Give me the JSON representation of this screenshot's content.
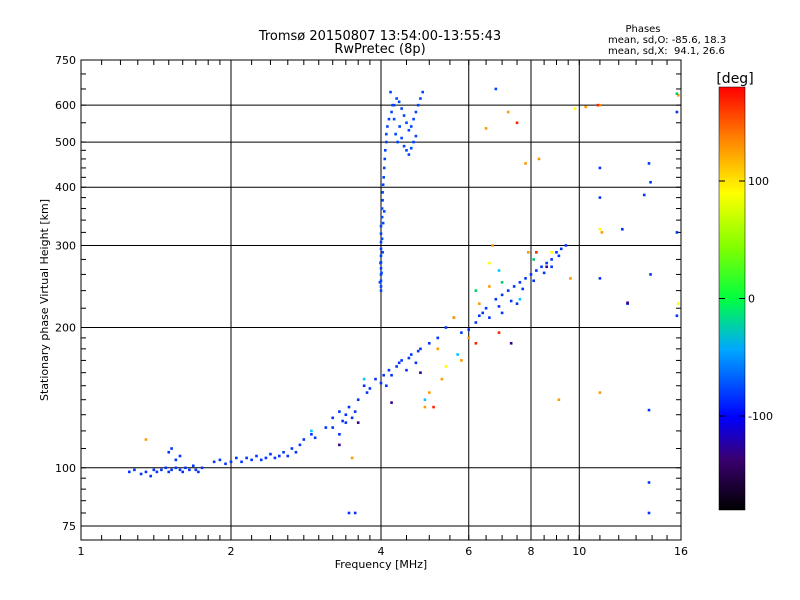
{
  "chart_data": {
    "type": "scatter",
    "title": "Tromsø 20150807 13:54:00-13:55:43",
    "subtitle": "RwPretec (8p)",
    "xlabel": "Frequency [MHz]",
    "ylabel": "Stationary phase Virtual Height [km]",
    "x_scale": "log2",
    "y_scale": "log",
    "xlim": [
      1,
      16
    ],
    "ylim": [
      70,
      750
    ],
    "x_ticks": [
      1,
      2,
      4,
      6,
      8,
      10,
      16
    ],
    "x_tick_labels": [
      "1",
      "2",
      "4",
      "6",
      "8",
      "10",
      "16"
    ],
    "y_ticks": [
      75,
      100,
      200,
      300,
      400,
      500,
      600,
      750
    ],
    "y_tick_labels": [
      "75",
      "100",
      "200",
      "300",
      "400",
      "500",
      "600",
      "750"
    ],
    "grid": true,
    "phase_info": {
      "title": "Phases",
      "line1": "mean, sd,O: -85.6, 18.3",
      "line2": "mean, sd,X:  94.1, 26.6"
    },
    "colorbar": {
      "label": "[deg]",
      "range": [
        -180,
        180
      ],
      "ticks": [
        100,
        0,
        -100
      ],
      "tick_labels": [
        "100",
        "0",
        "-100"
      ]
    },
    "series": [
      {
        "marker_color": "#0033ff",
        "points": [
          [
            1.25,
            98
          ],
          [
            1.28,
            99
          ],
          [
            1.32,
            97
          ],
          [
            1.35,
            98
          ],
          [
            1.38,
            96
          ],
          [
            1.4,
            99
          ],
          [
            1.42,
            98
          ],
          [
            1.45,
            99
          ],
          [
            1.48,
            100
          ],
          [
            1.5,
            98
          ],
          [
            1.52,
            99
          ],
          [
            1.55,
            100
          ],
          [
            1.58,
            99
          ],
          [
            1.6,
            98
          ],
          [
            1.62,
            100
          ],
          [
            1.65,
            99
          ],
          [
            1.68,
            101
          ],
          [
            1.7,
            99
          ],
          [
            1.72,
            98
          ],
          [
            1.75,
            100
          ],
          [
            1.5,
            108
          ],
          [
            1.52,
            110
          ],
          [
            1.58,
            106
          ],
          [
            1.55,
            104
          ],
          [
            1.85,
            103
          ],
          [
            1.9,
            104
          ],
          [
            1.95,
            102
          ],
          [
            2.0,
            103
          ],
          [
            2.05,
            105
          ],
          [
            2.1,
            103
          ],
          [
            2.15,
            105
          ],
          [
            2.2,
            104
          ],
          [
            2.25,
            106
          ],
          [
            2.3,
            104
          ],
          [
            2.35,
            105
          ],
          [
            2.4,
            107
          ],
          [
            2.45,
            105
          ],
          [
            2.5,
            106
          ],
          [
            2.55,
            108
          ],
          [
            2.6,
            106
          ],
          [
            2.65,
            110
          ],
          [
            2.7,
            108
          ],
          [
            2.75,
            112
          ],
          [
            2.8,
            115
          ],
          [
            2.9,
            118
          ],
          [
            2.95,
            116
          ],
          [
            3.1,
            122
          ],
          [
            3.2,
            128
          ],
          [
            3.3,
            132
          ],
          [
            3.35,
            126
          ],
          [
            3.4,
            130
          ],
          [
            3.45,
            135
          ],
          [
            3.5,
            128
          ],
          [
            3.6,
            140
          ],
          [
            3.7,
            150
          ],
          [
            3.8,
            148
          ],
          [
            3.9,
            155
          ],
          [
            4.0,
            152
          ],
          [
            4.1,
            150
          ],
          [
            4.2,
            158
          ],
          [
            4.3,
            165
          ],
          [
            4.4,
            170
          ],
          [
            4.5,
            162
          ],
          [
            4.6,
            175
          ],
          [
            4.7,
            168
          ],
          [
            4.8,
            180
          ],
          [
            5.0,
            185
          ],
          [
            5.2,
            190
          ],
          [
            5.4,
            200
          ],
          [
            5.6,
            210
          ],
          [
            5.8,
            195
          ],
          [
            6.0,
            198
          ],
          [
            6.2,
            205
          ],
          [
            6.4,
            215
          ],
          [
            6.5,
            220
          ],
          [
            6.6,
            210
          ],
          [
            6.8,
            230
          ],
          [
            7.0,
            235
          ],
          [
            7.2,
            240
          ],
          [
            7.4,
            245
          ],
          [
            7.6,
            250
          ],
          [
            7.8,
            255
          ],
          [
            8.0,
            260
          ],
          [
            8.2,
            265
          ],
          [
            8.4,
            270
          ],
          [
            8.6,
            275
          ],
          [
            8.8,
            280
          ],
          [
            9.0,
            290
          ],
          [
            9.2,
            295
          ],
          [
            9.4,
            300
          ],
          [
            7.0,
            215
          ],
          [
            7.3,
            228
          ],
          [
            7.7,
            242
          ],
          [
            8.1,
            252
          ],
          [
            8.5,
            262
          ],
          [
            6.9,
            222
          ],
          [
            6.3,
            212
          ],
          [
            7.5,
            225
          ],
          [
            8.8,
            270
          ],
          [
            9.1,
            285
          ],
          [
            3.2,
            122
          ],
          [
            3.3,
            118
          ],
          [
            3.4,
            125
          ],
          [
            3.55,
            132
          ],
          [
            3.75,
            145
          ],
          [
            4.05,
            158
          ],
          [
            4.15,
            162
          ],
          [
            4.35,
            168
          ],
          [
            4.55,
            172
          ],
          [
            4.75,
            178
          ],
          [
            3.45,
            80
          ],
          [
            3.55,
            80
          ],
          [
            13.8,
            80
          ],
          [
            13.8,
            93
          ],
          [
            13.8,
            133
          ],
          [
            12.5,
            225
          ],
          [
            13.9,
            260
          ],
          [
            15.7,
            212
          ],
          [
            15.7,
            320
          ],
          [
            15.7,
            580
          ],
          [
            11.0,
            440
          ],
          [
            11.0,
            255
          ],
          [
            12.2,
            325
          ],
          [
            13.5,
            385
          ],
          [
            13.8,
            450
          ],
          [
            13.9,
            410
          ],
          [
            11.0,
            380
          ]
        ]
      },
      {
        "marker_color": "#0044ff",
        "points": [
          [
            4.0,
            245
          ],
          [
            4.0,
            252
          ],
          [
            4.0,
            260
          ],
          [
            4.0,
            268
          ],
          [
            4.0,
            276
          ],
          [
            4.0,
            285
          ],
          [
            4.0,
            295
          ],
          [
            4.0,
            305
          ],
          [
            4.0,
            318
          ],
          [
            4.0,
            330
          ],
          [
            4.02,
            345
          ],
          [
            4.02,
            360
          ],
          [
            4.03,
            375
          ],
          [
            4.03,
            390
          ],
          [
            4.04,
            405
          ],
          [
            4.05,
            420
          ],
          [
            4.06,
            440
          ],
          [
            4.07,
            460
          ],
          [
            4.08,
            480
          ],
          [
            4.1,
            500
          ],
          [
            4.1,
            520
          ],
          [
            4.12,
            540
          ],
          [
            4.15,
            560
          ],
          [
            4.2,
            580
          ],
          [
            4.25,
            600
          ],
          [
            4.3,
            620
          ],
          [
            4.18,
            640
          ],
          [
            4.35,
            610
          ],
          [
            4.4,
            590
          ],
          [
            4.45,
            570
          ],
          [
            4.5,
            550
          ],
          [
            4.55,
            530
          ],
          [
            4.6,
            540
          ],
          [
            4.65,
            560
          ],
          [
            4.7,
            580
          ],
          [
            4.75,
            600
          ],
          [
            4.8,
            620
          ],
          [
            4.85,
            640
          ],
          [
            4.4,
            510
          ],
          [
            4.45,
            490
          ],
          [
            4.5,
            480
          ],
          [
            4.55,
            470
          ],
          [
            4.6,
            485
          ],
          [
            4.65,
            500
          ],
          [
            4.7,
            515
          ],
          [
            4.28,
            520
          ],
          [
            4.32,
            500
          ],
          [
            4.36,
            540
          ],
          [
            4.25,
            560
          ],
          [
            4.22,
            600
          ],
          [
            4.0,
            240
          ],
          [
            3.98,
            250
          ],
          [
            4.01,
            262
          ],
          [
            3.99,
            275
          ],
          [
            4.03,
            290
          ],
          [
            4.02,
            310
          ],
          [
            4.04,
            335
          ],
          [
            4.06,
            355
          ],
          [
            6.8,
            650
          ]
        ]
      },
      {
        "marker_color": "#ff9900",
        "points": [
          [
            1.35,
            115
          ],
          [
            3.5,
            105
          ],
          [
            4.9,
            135
          ],
          [
            5.2,
            180
          ],
          [
            5.6,
            210
          ],
          [
            6.3,
            225
          ],
          [
            6.5,
            535
          ],
          [
            6.7,
            300
          ],
          [
            7.2,
            580
          ],
          [
            7.8,
            450
          ],
          [
            8.3,
            460
          ],
          [
            9.1,
            140
          ],
          [
            9.6,
            255
          ],
          [
            10.3,
            595
          ],
          [
            11.0,
            600
          ],
          [
            11.0,
            145
          ],
          [
            11.1,
            320
          ],
          [
            15.8,
            630
          ],
          [
            6.0,
            190
          ],
          [
            5.8,
            170
          ],
          [
            6.6,
            245
          ],
          [
            7.9,
            290
          ],
          [
            5.3,
            155
          ],
          [
            5.0,
            145
          ]
        ]
      },
      {
        "marker_color": "#ffff00",
        "points": [
          [
            9.8,
            590
          ],
          [
            11.0,
            325
          ],
          [
            15.8,
            225
          ],
          [
            6.6,
            275
          ],
          [
            8.8,
            290
          ],
          [
            5.4,
            165
          ]
        ]
      },
      {
        "marker_color": "#00cc66",
        "points": [
          [
            15.7,
            635
          ],
          [
            7.0,
            250
          ],
          [
            6.2,
            240
          ],
          [
            8.1,
            280
          ]
        ]
      },
      {
        "marker_color": "#00c8ff",
        "points": [
          [
            3.7,
            155
          ],
          [
            2.9,
            120
          ],
          [
            6.9,
            265
          ],
          [
            4.9,
            140
          ],
          [
            7.6,
            230
          ],
          [
            5.7,
            175
          ]
        ]
      },
      {
        "marker_color": "#ff2200",
        "points": [
          [
            5.1,
            135
          ],
          [
            6.2,
            185
          ],
          [
            7.5,
            550
          ],
          [
            8.2,
            290
          ],
          [
            10.9,
            600
          ],
          [
            6.9,
            195
          ]
        ]
      },
      {
        "marker_color": "#330088",
        "points": [
          [
            3.3,
            112
          ],
          [
            3.6,
            125
          ],
          [
            4.2,
            138
          ],
          [
            4.8,
            160
          ],
          [
            7.3,
            185
          ],
          [
            8.6,
            270
          ],
          [
            12.5,
            226
          ]
        ]
      }
    ]
  }
}
